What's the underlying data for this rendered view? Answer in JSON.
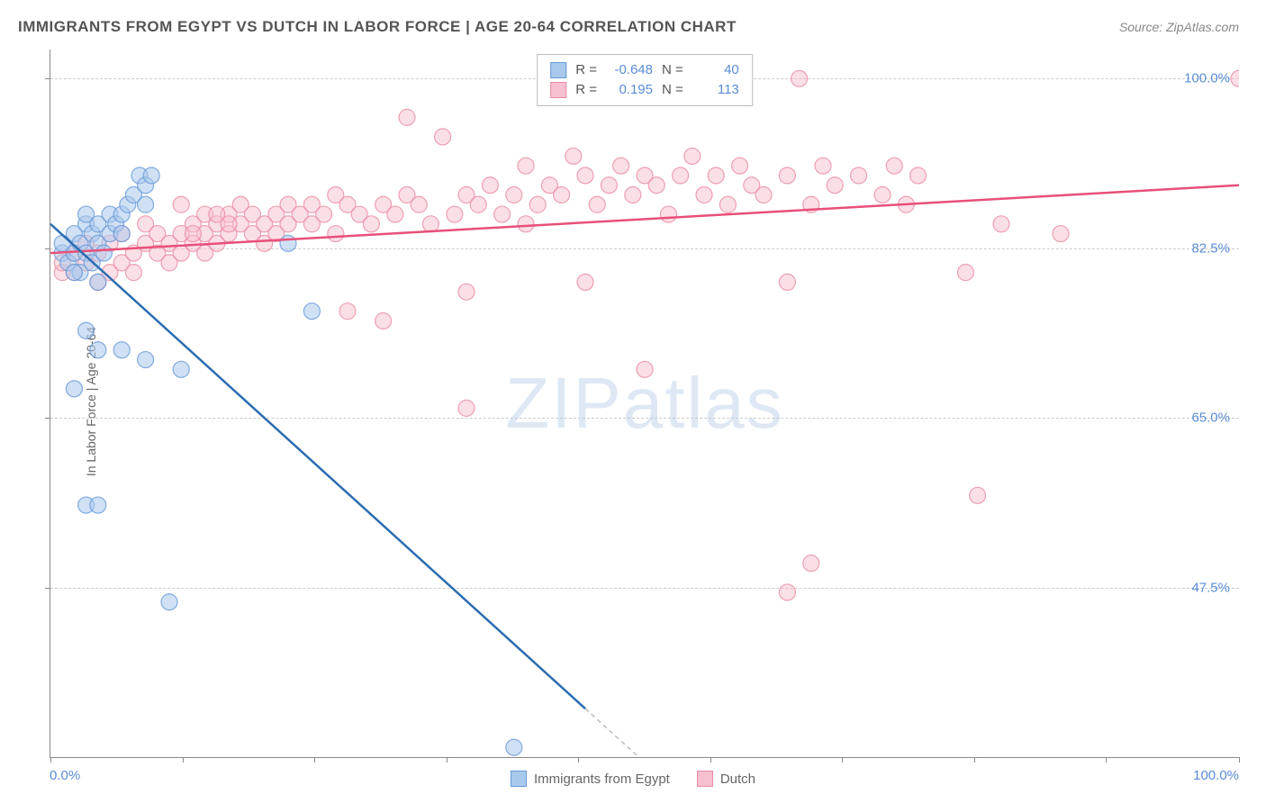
{
  "title": "IMMIGRANTS FROM EGYPT VS DUTCH IN LABOR FORCE | AGE 20-64 CORRELATION CHART",
  "source": "Source: ZipAtlas.com",
  "y_axis_label": "In Labor Force | Age 20-64",
  "watermark_bold": "ZIP",
  "watermark_thin": "atlas",
  "chart": {
    "type": "scatter",
    "background_color": "#ffffff",
    "grid_color": "#cccccc",
    "axis_color": "#888888",
    "label_color": "#5a8cd6",
    "xlim": [
      0,
      100
    ],
    "ylim": [
      30,
      103
    ],
    "y_ticks": [
      47.5,
      65.0,
      82.5,
      100.0
    ],
    "y_tick_labels": [
      "47.5%",
      "65.0%",
      "82.5%",
      "100.0%"
    ],
    "x_tick_positions": [
      0,
      11.1,
      22.2,
      33.3,
      44.4,
      55.5,
      66.6,
      77.7,
      88.8,
      100
    ],
    "x_label_min": "0.0%",
    "x_label_max": "100.0%",
    "label_fontsize": 15,
    "title_fontsize": 17
  },
  "series": {
    "egypt": {
      "label": "Immigrants from Egypt",
      "fill_color": "#a9c9ec",
      "stroke_color": "#6699d8",
      "line_color": "#2b6cb0",
      "marker_radius": 9,
      "marker_opacity": 0.55,
      "R": "-0.648",
      "N": "40",
      "trend": {
        "x1": 0,
        "y1": 85,
        "x2": 45,
        "y2": 35
      },
      "trend_ext": {
        "x1": 45,
        "y1": 35,
        "x2": 49.5,
        "y2": 30
      },
      "points": [
        [
          1,
          82
        ],
        [
          1,
          83
        ],
        [
          1.5,
          81
        ],
        [
          2,
          82
        ],
        [
          2,
          84
        ],
        [
          2.5,
          80
        ],
        [
          2.5,
          83
        ],
        [
          3,
          82
        ],
        [
          3,
          85
        ],
        [
          3.5,
          81
        ],
        [
          3.5,
          84
        ],
        [
          4,
          83
        ],
        [
          4,
          85
        ],
        [
          4.5,
          82
        ],
        [
          5,
          84
        ],
        [
          5,
          86
        ],
        [
          5.5,
          85
        ],
        [
          6,
          86
        ],
        [
          6,
          84
        ],
        [
          6.5,
          87
        ],
        [
          7,
          88
        ],
        [
          7.5,
          90
        ],
        [
          8,
          89
        ],
        [
          8,
          87
        ],
        [
          8.5,
          90
        ],
        [
          4,
          79
        ],
        [
          3,
          74
        ],
        [
          4,
          72
        ],
        [
          6,
          72
        ],
        [
          8,
          71
        ],
        [
          11,
          70
        ],
        [
          2,
          68
        ],
        [
          3,
          56
        ],
        [
          4,
          56
        ],
        [
          10,
          46
        ],
        [
          22,
          76
        ],
        [
          20,
          83
        ],
        [
          39,
          31
        ],
        [
          2,
          80
        ],
        [
          3,
          86
        ]
      ]
    },
    "dutch": {
      "label": "Dutch",
      "fill_color": "#f7c0ce",
      "stroke_color": "#e88ba3",
      "line_color": "#e84f7a",
      "marker_radius": 9,
      "marker_opacity": 0.5,
      "R": "0.195",
      "N": "113",
      "trend": {
        "x1": 0,
        "y1": 82,
        "x2": 100,
        "y2": 89
      },
      "points": [
        [
          1,
          80
        ],
        [
          1,
          81
        ],
        [
          2,
          80
        ],
        [
          2,
          82
        ],
        [
          3,
          81
        ],
        [
          3,
          83
        ],
        [
          4,
          82
        ],
        [
          4,
          79
        ],
        [
          5,
          80
        ],
        [
          5,
          83
        ],
        [
          6,
          81
        ],
        [
          6,
          84
        ],
        [
          7,
          82
        ],
        [
          7,
          80
        ],
        [
          8,
          83
        ],
        [
          8,
          85
        ],
        [
          9,
          82
        ],
        [
          9,
          84
        ],
        [
          10,
          83
        ],
        [
          10,
          81
        ],
        [
          11,
          84
        ],
        [
          11,
          82
        ],
        [
          12,
          85
        ],
        [
          12,
          83
        ],
        [
          13,
          84
        ],
        [
          13,
          86
        ],
        [
          14,
          85
        ],
        [
          14,
          83
        ],
        [
          15,
          86
        ],
        [
          15,
          84
        ],
        [
          16,
          85
        ],
        [
          16,
          87
        ],
        [
          17,
          86
        ],
        [
          17,
          84
        ],
        [
          18,
          85
        ],
        [
          18,
          83
        ],
        [
          19,
          86
        ],
        [
          19,
          84
        ],
        [
          20,
          85
        ],
        [
          20,
          87
        ],
        [
          21,
          86
        ],
        [
          22,
          85
        ],
        [
          22,
          87
        ],
        [
          23,
          86
        ],
        [
          24,
          88
        ],
        [
          24,
          84
        ],
        [
          25,
          87
        ],
        [
          26,
          86
        ],
        [
          27,
          85
        ],
        [
          28,
          87
        ],
        [
          29,
          86
        ],
        [
          30,
          88
        ],
        [
          30,
          96
        ],
        [
          31,
          87
        ],
        [
          32,
          85
        ],
        [
          33,
          94
        ],
        [
          34,
          86
        ],
        [
          35,
          88
        ],
        [
          35,
          78
        ],
        [
          36,
          87
        ],
        [
          37,
          89
        ],
        [
          38,
          86
        ],
        [
          39,
          88
        ],
        [
          40,
          91
        ],
        [
          40,
          85
        ],
        [
          41,
          87
        ],
        [
          42,
          89
        ],
        [
          43,
          88
        ],
        [
          44,
          92
        ],
        [
          45,
          90
        ],
        [
          45,
          79
        ],
        [
          46,
          87
        ],
        [
          47,
          89
        ],
        [
          48,
          91
        ],
        [
          49,
          88
        ],
        [
          50,
          90
        ],
        [
          50,
          70
        ],
        [
          51,
          89
        ],
        [
          52,
          86
        ],
        [
          53,
          90
        ],
        [
          54,
          92
        ],
        [
          55,
          88
        ],
        [
          56,
          90
        ],
        [
          57,
          87
        ],
        [
          58,
          91
        ],
        [
          59,
          89
        ],
        [
          60,
          88
        ],
        [
          62,
          90
        ],
        [
          62,
          79
        ],
        [
          63,
          100
        ],
        [
          64,
          87
        ],
        [
          65,
          91
        ],
        [
          66,
          89
        ],
        [
          68,
          90
        ],
        [
          70,
          88
        ],
        [
          71,
          91
        ],
        [
          72,
          87
        ],
        [
          73,
          90
        ],
        [
          64,
          50
        ],
        [
          62,
          47
        ],
        [
          78,
          57
        ],
        [
          77,
          80
        ],
        [
          80,
          85
        ],
        [
          85,
          84
        ],
        [
          100,
          100
        ],
        [
          35,
          66
        ],
        [
          11,
          87
        ],
        [
          12,
          84
        ],
        [
          13,
          82
        ],
        [
          14,
          86
        ],
        [
          15,
          85
        ],
        [
          25,
          76
        ],
        [
          28,
          75
        ]
      ]
    }
  },
  "legend": {
    "R_label": "R =",
    "N_label": "N ="
  }
}
